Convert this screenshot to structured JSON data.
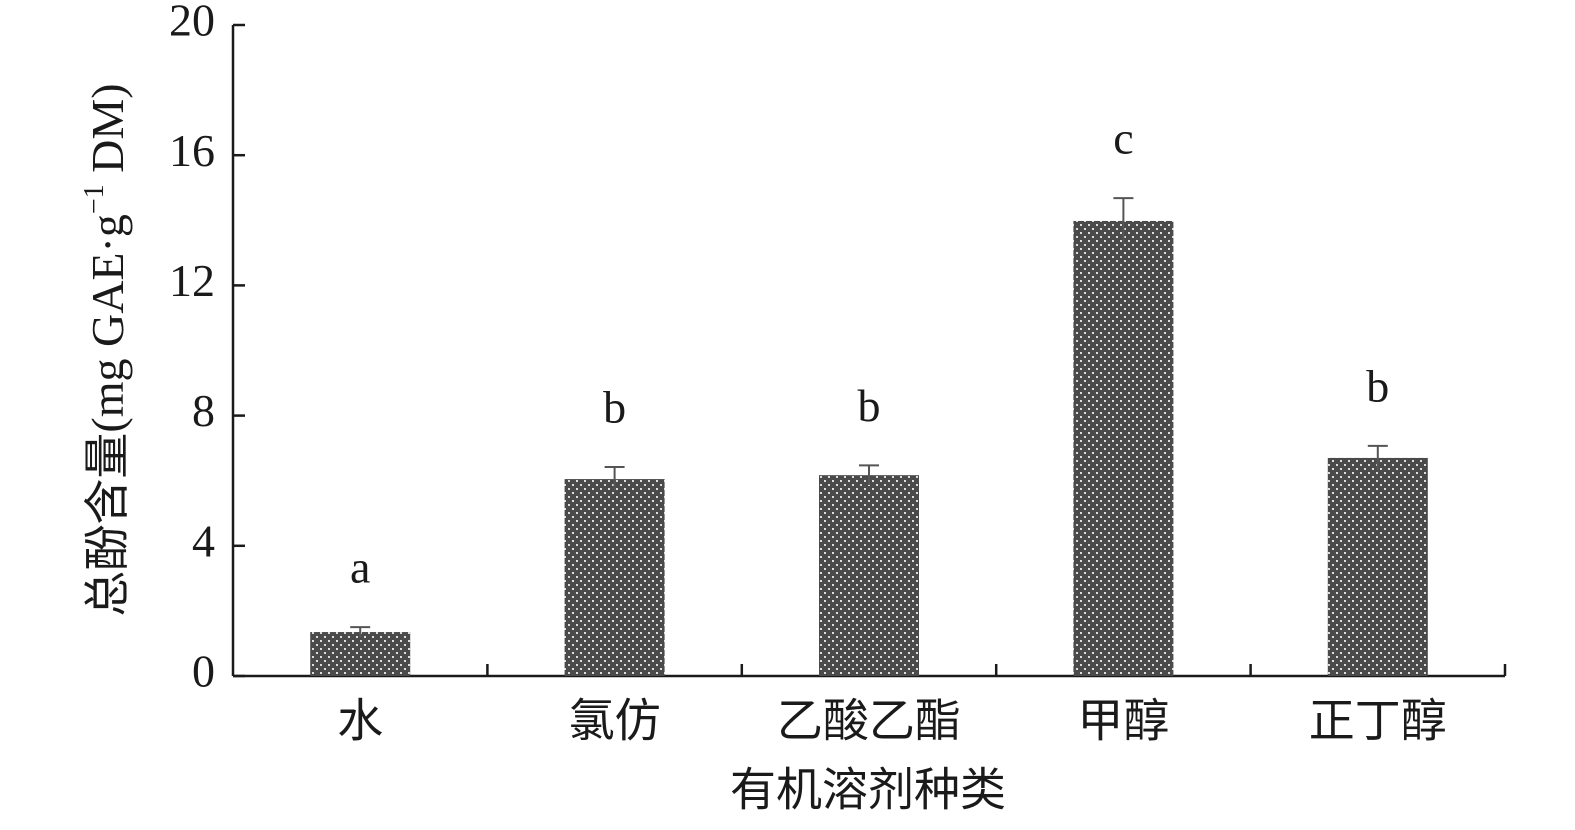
{
  "chart_data": {
    "type": "bar",
    "categories": [
      "水",
      "氯仿",
      "乙酸乙酯",
      "甲醇",
      "正丁醇"
    ],
    "values": [
      1.35,
      6.05,
      6.17,
      13.98,
      6.7
    ],
    "errors": [
      0.15,
      0.37,
      0.3,
      0.7,
      0.37
    ],
    "annotations": [
      "a",
      "b",
      "b",
      "c",
      "b"
    ],
    "color": "#4a4a4a",
    "xlabel": "有机溶剂种类",
    "ylabel_parts": [
      "总酚含量(mg GAE·g",
      "−1",
      " DM)"
    ],
    "ylim": [
      0,
      20
    ],
    "yticks": [
      0,
      4,
      8,
      12,
      16,
      20
    ],
    "grid": false
  }
}
